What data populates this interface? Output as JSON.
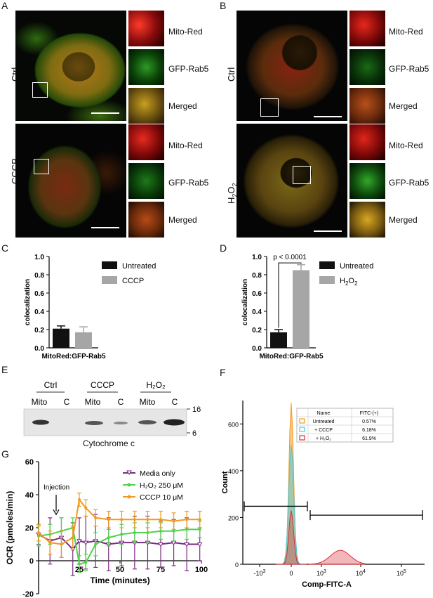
{
  "panels": {
    "A": {
      "letter": "A",
      "top_condition": "Ctrl",
      "bottom_condition": "CCCP",
      "tiles": [
        "Mito-Red",
        "GFP-Rab5",
        "Merged"
      ]
    },
    "B": {
      "letter": "B",
      "top_condition": "Ctrl",
      "bottom_condition": "H",
      "h2o2_sub": "2",
      "h2o2_o": "O",
      "h2o2_sub2": "2",
      "tiles": [
        "Mito-Red",
        "GFP-Rab5",
        "Merged"
      ]
    },
    "E": {
      "letter": "E",
      "groups": [
        "Ctrl",
        "CCCP",
        "H₂O₂"
      ],
      "lanes": [
        "Mito",
        "C",
        "Mito",
        "C",
        "Mito",
        "C"
      ],
      "markers": [
        "16",
        "6"
      ],
      "caption": "Cytochrome c"
    }
  },
  "colors": {
    "untreated": "#111111",
    "treated": "#a6a6a6",
    "media": "#7b2a83",
    "h2o2": "#4ed44a",
    "cccp": "#f39a1e"
  },
  "chart_data": [
    {
      "panel": "C",
      "type": "bar",
      "categories": [
        "MitoRed:GFP-Rab5"
      ],
      "series": [
        {
          "name": "Untreated",
          "values": [
            0.21
          ],
          "errors": [
            0.03
          ]
        },
        {
          "name": "CCCP",
          "values": [
            0.17
          ],
          "errors": [
            0.06
          ]
        }
      ],
      "ylabel": "colocalization",
      "ylim": [
        0,
        1.0
      ],
      "yticks": [
        "0.0",
        "0.2",
        "0.4",
        "0.6",
        "0.8",
        "1.0"
      ],
      "xlabel": "MitoRed:GFP-Rab5"
    },
    {
      "panel": "D",
      "type": "bar",
      "categories": [
        "MitoRed:GFP-Rab5"
      ],
      "series": [
        {
          "name": "Untreated",
          "values": [
            0.17
          ],
          "errors": [
            0.03
          ]
        },
        {
          "name": "H2O2",
          "values": [
            0.85
          ],
          "errors": [
            0.06
          ]
        }
      ],
      "ylabel": "colocalization",
      "ylim": [
        0,
        1.0
      ],
      "yticks": [
        "0.0",
        "0.2",
        "0.4",
        "0.6",
        "0.8",
        "1.0"
      ],
      "xlabel": "MitoRed:GFP-Rab5",
      "annotation": "p < 0.0001"
    },
    {
      "panel": "G",
      "type": "line",
      "xlabel": "Time (minutes)",
      "ylabel": "OCR (pmoles/min)",
      "xlim": [
        0,
        100
      ],
      "ylim": [
        -20,
        60
      ],
      "xticks": [
        "25",
        "50",
        "75",
        "100"
      ],
      "yticks": [
        "-20",
        "0",
        "20",
        "40",
        "60"
      ],
      "annotation": "Injection",
      "x": [
        0,
        7,
        14,
        21,
        25,
        29,
        35,
        43,
        51,
        59,
        67,
        75,
        83,
        91,
        99
      ],
      "series": [
        {
          "name": "Media only",
          "values": [
            16,
            12,
            14,
            7,
            12,
            11,
            12,
            10,
            11,
            11,
            11,
            10,
            11,
            10,
            10
          ],
          "errors": [
            6,
            14,
            12,
            16,
            14,
            16,
            16,
            16,
            14,
            16,
            16,
            14,
            14,
            16,
            10
          ]
        },
        {
          "name": "H₂O₂ 250 μM",
          "values": [
            15,
            16,
            18,
            20,
            -2,
            -1,
            10,
            14,
            16,
            17,
            17,
            18,
            18,
            19,
            19
          ],
          "errors": [
            6,
            6,
            8,
            6,
            5,
            5,
            7,
            5,
            6,
            6,
            6,
            5,
            6,
            6,
            5
          ]
        },
        {
          "name": "CCCP 10 μM",
          "values": [
            17,
            11,
            10,
            14,
            37,
            32,
            26,
            25,
            25,
            25,
            25,
            25,
            24,
            25,
            25
          ],
          "errors": [
            5,
            7,
            8,
            7,
            4,
            5,
            5,
            5,
            5,
            5,
            5,
            5,
            5,
            5,
            5
          ]
        }
      ]
    },
    {
      "panel": "F",
      "type": "area",
      "xlabel": "Comp-FITC-A",
      "ylabel": "Count",
      "ylim": [
        0,
        700
      ],
      "yticks": [
        "0",
        "200",
        "400",
        "600"
      ],
      "xticks": [
        "-10",
        "0",
        "10",
        "10",
        "10"
      ],
      "xtick_exps": [
        "3",
        "",
        "3",
        "4",
        "5"
      ],
      "table": {
        "headers": [
          "Name",
          "FITC-(+)"
        ],
        "rows": [
          {
            "name": "Untreated",
            "value": "0.57%",
            "color": "#f39a1e"
          },
          {
            "name": "+ CCCP",
            "value": "6.18%",
            "color": "#4fc8d8"
          },
          {
            "name": "+ H₂O₂",
            "value": "61.9%",
            "color": "#d9303a"
          }
        ]
      },
      "series": [
        {
          "name": "Untreated",
          "peak": 690
        },
        {
          "name": "+ CCCP",
          "peak": 510
        },
        {
          "name": "+ H₂O₂",
          "peak": 230,
          "second_peak": 60
        }
      ]
    }
  ],
  "labels": {
    "C": "C",
    "D": "D",
    "F": "F",
    "G": "G"
  }
}
